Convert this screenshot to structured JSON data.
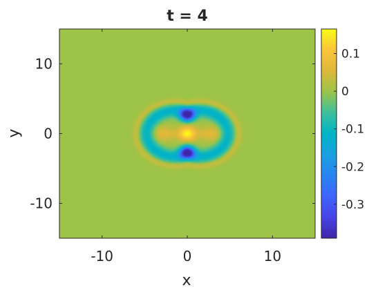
{
  "chart_data": {
    "type": "heatmap",
    "title": "t = 4",
    "xlabel": "x",
    "ylabel": "y",
    "xlim": [
      -15,
      15
    ],
    "ylim": [
      -15,
      15
    ],
    "xticks": [
      -10,
      0,
      10
    ],
    "yticks": [
      10,
      0,
      -10
    ],
    "xtick_labels": [
      "-10",
      "0",
      "10"
    ],
    "ytick_labels": [
      "10",
      "0",
      "-10"
    ],
    "colorbar": {
      "range": [
        -0.39,
        0.165
      ],
      "ticks": [
        0.1,
        0,
        -0.1,
        -0.2,
        -0.3
      ],
      "tick_labels": [
        "0.1",
        "0",
        "-0.1",
        "-0.2",
        "-0.3"
      ],
      "colormap": "parula"
    },
    "field_features": [
      {
        "x": 0,
        "y": 0,
        "value": 0.16
      },
      {
        "x": 0,
        "y": 2.7,
        "value": -0.38
      },
      {
        "x": 0,
        "y": -2.7,
        "value": -0.38
      },
      {
        "x": -3.1,
        "y": 0,
        "value": 0.06
      },
      {
        "x": 3.1,
        "y": 0,
        "value": 0.06
      },
      {
        "x": -4.7,
        "y": 0,
        "value": -0.12
      },
      {
        "x": 4.7,
        "y": 0,
        "value": -0.12
      },
      {
        "x": 0,
        "y": 4.5,
        "value": 0.04
      },
      {
        "x": 0,
        "y": -4.5,
        "value": 0.04
      },
      {
        "x": 0,
        "y": 0,
        "value": 0,
        "note": "background"
      }
    ],
    "grid": false
  }
}
